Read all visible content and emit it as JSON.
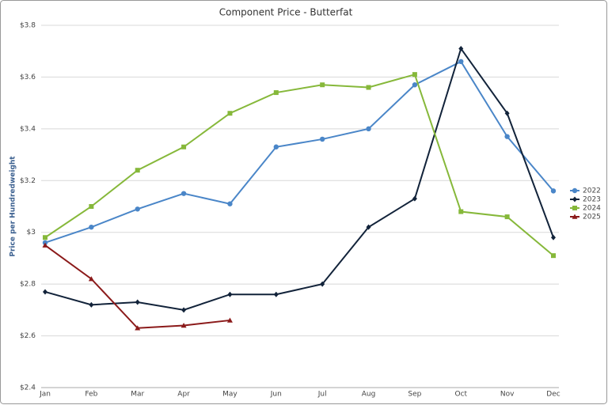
{
  "chart_data": {
    "type": "line",
    "title": "Component Price - Butterfat",
    "y_label": "Price per Hundredweight",
    "categories": [
      "Jan",
      "Feb",
      "Mar",
      "Apr",
      "May",
      "Jun",
      "Jul",
      "Aug",
      "Sep",
      "Oct",
      "Nov",
      "Dec"
    ],
    "series": [
      {
        "name": "2022",
        "color": "#4a86c8",
        "marker": "circle",
        "values": [
          2.96,
          3.02,
          3.09,
          3.15,
          3.11,
          3.33,
          3.36,
          3.4,
          3.57,
          3.66,
          3.37,
          3.16
        ]
      },
      {
        "name": "2023",
        "color": "#12233a",
        "marker": "diamond",
        "values": [
          2.77,
          2.72,
          2.73,
          2.7,
          2.76,
          2.76,
          2.8,
          3.02,
          3.13,
          3.71,
          3.46,
          2.98
        ]
      },
      {
        "name": "2024",
        "color": "#86b83a",
        "marker": "square",
        "values": [
          2.98,
          3.1,
          3.24,
          3.33,
          3.46,
          3.54,
          3.57,
          3.56,
          3.61,
          3.08,
          3.06,
          2.91
        ]
      },
      {
        "name": "2025",
        "color": "#8b1a1a",
        "marker": "triangle",
        "values": [
          2.95,
          2.82,
          2.63,
          2.64,
          2.66,
          null,
          null,
          null,
          null,
          null,
          null,
          null
        ]
      }
    ],
    "ylim": [
      2.4,
      3.8
    ],
    "yticks": [
      {
        "value": 2.4,
        "label": "$2.4"
      },
      {
        "value": 2.6,
        "label": "$2.6"
      },
      {
        "value": 2.8,
        "label": "$2.8"
      },
      {
        "value": 3,
        "label": "$3"
      },
      {
        "value": 3.2,
        "label": "$3.2"
      },
      {
        "value": 3.4,
        "label": "$3.4"
      },
      {
        "value": 3.6,
        "label": "$3.6"
      },
      {
        "value": 3.8,
        "label": "$3.8"
      }
    ],
    "grid": true,
    "legend": "right"
  }
}
